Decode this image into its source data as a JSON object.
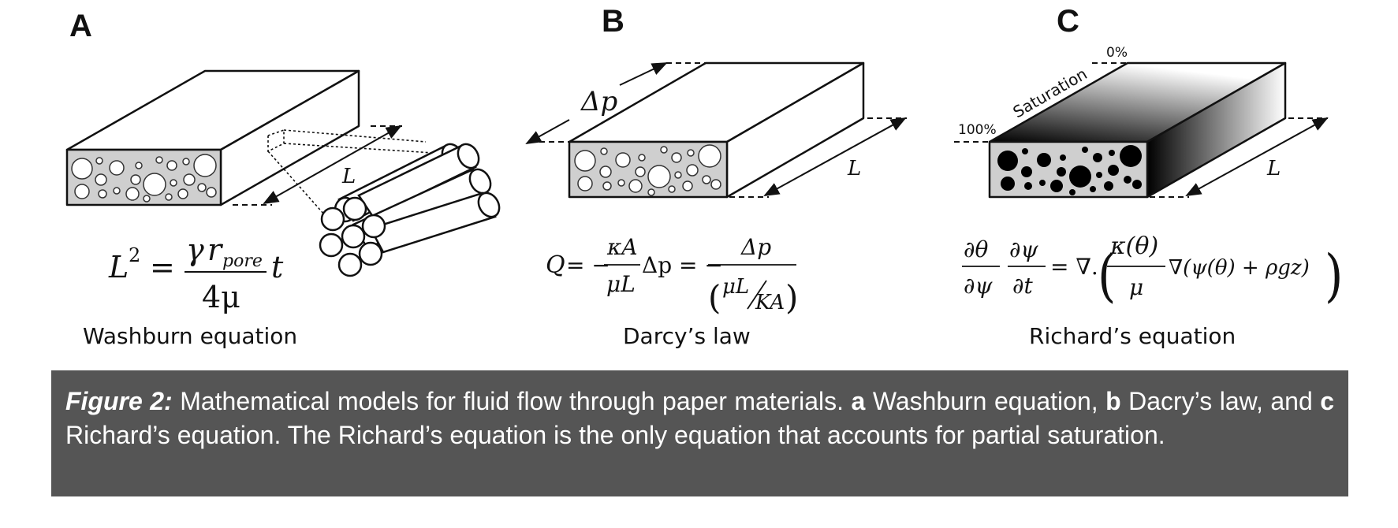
{
  "panels": [
    {
      "letter": "A",
      "length_label": "L",
      "equation": {
        "lhs": "L",
        "lhs_sup": "2",
        "eq": "=",
        "num_gamma": "γ",
        "num_r": "r",
        "num_sub": "pore",
        "den": "4μ",
        "tail": "t"
      },
      "label": "Washburn equation"
    },
    {
      "letter": "B",
      "pressure_label": "Δp",
      "length_label": "L",
      "equation": {
        "q": "Q",
        "part1": "= −",
        "frac1_num": "κA",
        "frac1_den": "μL",
        "part2": "Δp = −",
        "frac2_num": "Δp",
        "frac2_den_a": "μL",
        "frac2_den_b": "KA"
      },
      "label": "Darcy’s law"
    },
    {
      "letter": "C",
      "saturation_label": "Saturation",
      "pct_low": "0%",
      "pct_high": "100%",
      "length_label": "L",
      "equation": {
        "d_theta": "∂θ",
        "d_psi": "∂ψ",
        "d_psi2": "∂ψ",
        "d_t": "∂t",
        "eq": "= ∇.",
        "k_num": "κ(θ)",
        "k_den": "μ",
        "rest": "∇(ψ(θ) + ρgz)"
      },
      "label": "Richard’s equation"
    }
  ],
  "caption": {
    "lead": "Figure 2:",
    "part1": " Mathematical models for fluid flow through paper materials. ",
    "a": "a",
    "part2": " Washburn equation, ",
    "b": "b",
    "part3": " Dacry’s law, and ",
    "c": "c",
    "part4": " Richard’s equation. The Richard’s equation is the only equation that accounts for partial saturation."
  },
  "colors": {
    "caption_bg": "#555555",
    "slab_fill": "#cfcfcf",
    "pores_dark": "#000000"
  }
}
